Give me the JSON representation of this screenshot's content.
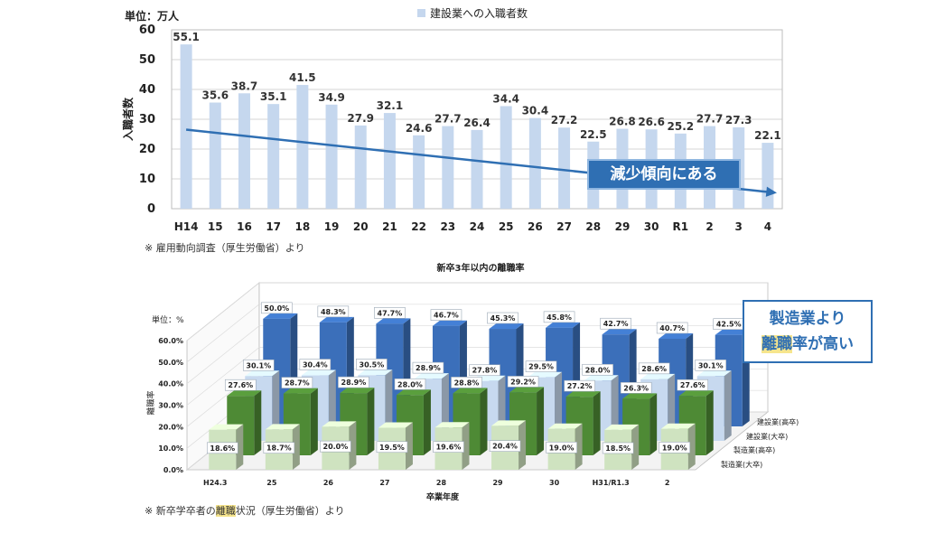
{
  "chart_data": [
    {
      "type": "bar",
      "title": "建設業への入職者数",
      "legend": [
        "建設業への入職者数"
      ],
      "unit_label": "単位：万人",
      "ylabel": "入職者数",
      "ylim": [
        0,
        60
      ],
      "yticks": [
        0,
        10,
        20,
        30,
        40,
        50,
        60
      ],
      "categories": [
        "H14",
        "15",
        "16",
        "17",
        "18",
        "19",
        "20",
        "21",
        "22",
        "23",
        "24",
        "25",
        "26",
        "27",
        "28",
        "29",
        "30",
        "R1",
        "2",
        "3",
        "4"
      ],
      "values": [
        55.1,
        35.6,
        38.7,
        35.1,
        41.5,
        34.9,
        27.9,
        32.1,
        24.6,
        27.7,
        26.4,
        34.4,
        30.4,
        27.2,
        22.5,
        26.8,
        26.6,
        25.2,
        27.7,
        27.3,
        22.1
      ],
      "value_labels": [
        "55.1",
        "35.6",
        "38.7",
        "35.1",
        "41.5",
        "34.9",
        "27.9",
        "32.1",
        "24.6",
        "27.7",
        "26.4",
        "34.4",
        "30.4",
        "27.2",
        "22.5",
        "26.8",
        "26.6",
        "25.2",
        "27.7",
        "27.3",
        "22.1"
      ],
      "trend": {
        "start": 26.5,
        "end": 5.3
      },
      "bar_color": "#c5d7ee",
      "trend_color": "#2f6fb3",
      "grid": true,
      "annotation": "減少傾向にある",
      "source": "※ 雇用動向調査（厚生労働省）より"
    },
    {
      "type": "bar",
      "title": "新卒3年以内の離職率",
      "unit_label": "単位：%",
      "ylabel": "離職率",
      "xlabel": "卒業年度",
      "ylim": [
        0,
        60
      ],
      "yticks": [
        "0.0%",
        "10.0%",
        "20.0%",
        "30.0%",
        "40.0%",
        "50.0%",
        "60.0%"
      ],
      "categories": [
        "H24.3",
        "25",
        "26",
        "27",
        "28",
        "29",
        "30",
        "H31/R1.3",
        "2"
      ],
      "legend": [
        "製造業(大卒)",
        "製造業(高卒)",
        "建設業(大卒)",
        "建設業(高卒)"
      ],
      "depth_labels": [
        "建設業(高卒)",
        "建設業(大卒)",
        "製造業(高卒)",
        "製造業(大卒)"
      ],
      "series": [
        {
          "name": "製造業(大卒)",
          "color": "#cfe3c0",
          "values": [
            18.6,
            18.7,
            20.0,
            19.5,
            19.6,
            20.4,
            19.0,
            18.5,
            19.0
          ],
          "labels": [
            "18.6%",
            "18.7%",
            "20.0%",
            "19.5%",
            "19.6%",
            "20.4%",
            "19.0%",
            "18.5%",
            "19.0%"
          ]
        },
        {
          "name": "製造業(高卒)",
          "color": "#4e8a35",
          "values": [
            27.6,
            28.7,
            28.9,
            28.0,
            28.8,
            29.2,
            27.2,
            26.3,
            27.6
          ],
          "labels": [
            "27.6%",
            "28.7%",
            "28.9%",
            "28.0%",
            "28.8%",
            "29.2%",
            "27.2%",
            "26.3%",
            "27.6%"
          ]
        },
        {
          "name": "建設業(大卒)",
          "color": "#c7d9ef",
          "values": [
            30.1,
            30.4,
            30.5,
            28.9,
            27.8,
            29.5,
            28.0,
            28.6,
            30.1
          ],
          "labels": [
            "30.1%",
            "30.4%",
            "30.5%",
            "28.9%",
            "27.8%",
            "29.5%",
            "28.0%",
            "28.6%",
            "30.1%"
          ]
        },
        {
          "name": "建設業(高卒)",
          "color": "#3b6fba",
          "values": [
            50.0,
            48.3,
            47.7,
            46.7,
            45.3,
            45.8,
            42.7,
            40.7,
            42.5
          ],
          "labels": [
            "50.0%",
            "48.3%",
            "47.7%",
            "46.7%",
            "45.3%",
            "45.8%",
            "42.7%",
            "40.7%",
            "42.5%"
          ]
        }
      ],
      "grid": true,
      "annotation_line1": "製造業より",
      "annotation_line2_hl": "離職",
      "annotation_line2_rest": "率が高い",
      "source_pre": "※ 新卒学卒者の",
      "source_hl": "離職",
      "source_post": "状況（厚生労働省）より"
    }
  ]
}
